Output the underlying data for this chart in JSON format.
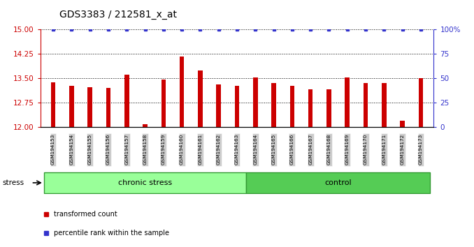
{
  "title": "GDS3383 / 212581_x_at",
  "categories": [
    "GSM194153",
    "GSM194154",
    "GSM194155",
    "GSM194156",
    "GSM194157",
    "GSM194158",
    "GSM194159",
    "GSM194160",
    "GSM194161",
    "GSM194162",
    "GSM194163",
    "GSM194164",
    "GSM194165",
    "GSM194166",
    "GSM194167",
    "GSM194168",
    "GSM194169",
    "GSM194170",
    "GSM194171",
    "GSM194172",
    "GSM194173"
  ],
  "bar_values": [
    13.38,
    13.27,
    13.23,
    13.21,
    13.62,
    12.09,
    13.47,
    14.18,
    13.75,
    13.32,
    13.27,
    13.52,
    13.35,
    13.27,
    13.17,
    13.17,
    13.52,
    13.35,
    13.35,
    12.2,
    13.5
  ],
  "percentile_values": [
    100,
    100,
    100,
    100,
    100,
    100,
    100,
    100,
    100,
    100,
    100,
    100,
    100,
    100,
    100,
    100,
    100,
    100,
    100,
    100,
    100
  ],
  "bar_color": "#CC0000",
  "percentile_color": "#3333CC",
  "ylim_left": [
    12,
    15
  ],
  "ylim_right": [
    0,
    100
  ],
  "yticks_left": [
    12,
    12.75,
    13.5,
    14.25,
    15
  ],
  "yticks_right": [
    0,
    25,
    50,
    75,
    100
  ],
  "grid_lines": [
    12.75,
    13.5,
    14.25
  ],
  "chronic_stress_count": 11,
  "chronic_stress_label": "chronic stress",
  "control_label": "control",
  "stress_label": "stress",
  "legend_bar_label": "transformed count",
  "legend_pct_label": "percentile rank within the sample",
  "chronic_stress_color": "#99FF99",
  "control_color": "#55CC55",
  "tick_bg_color": "#cccccc",
  "title_fontsize": 10,
  "bar_width": 0.25
}
